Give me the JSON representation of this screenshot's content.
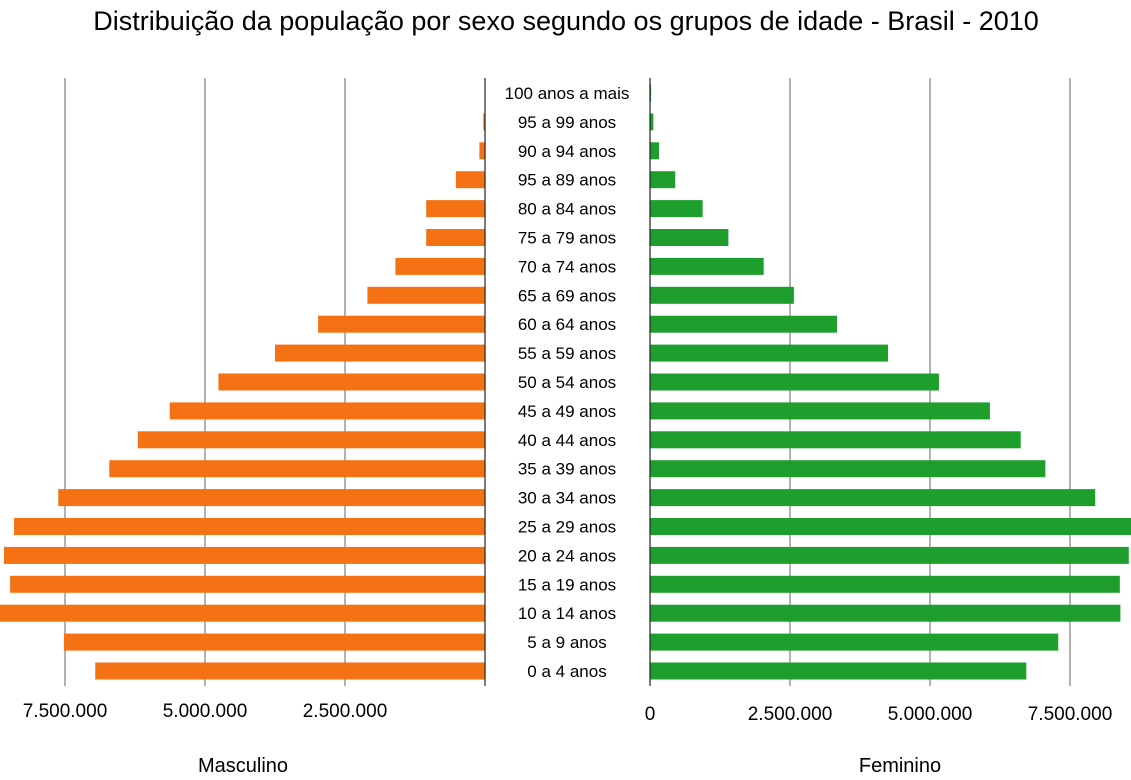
{
  "chart_data": {
    "type": "bar",
    "subtype": "population-pyramid",
    "title": "Distribuição da população por sexo segundo os grupos de idade - Brasil - 2010",
    "categories": [
      "100 anos a mais",
      "95 a 99 anos",
      "90 a 94 anos",
      "95 a 89 anos",
      "80 a 84 anos",
      "75 a 79 anos",
      "70 a 74 anos",
      "65 a 69 anos",
      "60 a 64 anos",
      "55 a 59 anos",
      "50 a 54 anos",
      "45 a 49 anos",
      "40 a 44 anos",
      "35 a 39 anos",
      "30 a 34 anos",
      "25 a 29 anos",
      "20 a 24 anos",
      "15 a 19 anos",
      "10 a 14 anos",
      "5 a 9 anos",
      "0 a 4 anos"
    ],
    "series": [
      {
        "name": "Masculino",
        "color": "#f57214",
        "values": [
          7000,
          30000,
          100000,
          520000,
          1050000,
          1050000,
          1600000,
          2100000,
          2980000,
          3750000,
          4760000,
          5630000,
          6200000,
          6710000,
          7620000,
          8410000,
          8590000,
          8480000,
          8690000,
          7520000,
          6960000
        ]
      },
      {
        "name": "Feminino",
        "color": "#1e9e2d",
        "values": [
          20000,
          60000,
          160000,
          450000,
          940000,
          1400000,
          2030000,
          2570000,
          3340000,
          4250000,
          5160000,
          6070000,
          6620000,
          7060000,
          7950000,
          8600000,
          8550000,
          8390000,
          8400000,
          7290000,
          6720000
        ]
      }
    ],
    "x_ticks_left": [
      "7.500.000",
      "5.000.000",
      "2.500.000"
    ],
    "x_ticks_right": [
      "0",
      "2.500.000",
      "5.000.000",
      "7.500.000"
    ],
    "xlim": [
      0,
      8600000
    ],
    "grid": true,
    "grid_color": "#666666"
  }
}
